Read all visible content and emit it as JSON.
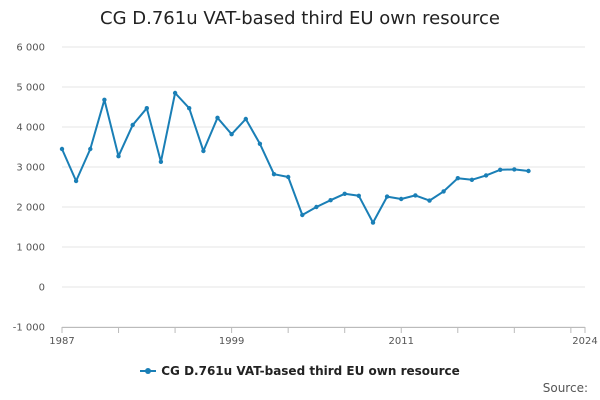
{
  "chart_data": {
    "type": "line",
    "title": "CG D.761u VAT-based third EU own resource",
    "xlabel": "",
    "ylabel": "",
    "xlim": [
      1987,
      2024
    ],
    "ylim": [
      -1000,
      6000
    ],
    "x_ticks": [
      1987,
      1999,
      2011,
      2024
    ],
    "x_tick_labels": [
      "1987",
      "1999",
      "2011",
      "2024"
    ],
    "y_ticks": [
      -1000,
      0,
      1000,
      2000,
      3000,
      4000,
      5000,
      6000
    ],
    "y_tick_labels": [
      "-1 000",
      "0",
      "1 000",
      "2 000",
      "3 000",
      "4 000",
      "5 000",
      "6 000"
    ],
    "grid": true,
    "legend_position": "bottom",
    "series": [
      {
        "name": "CG D.761u VAT-based third EU own resource",
        "color": "#1a7fb6",
        "x": [
          1987,
          1988,
          1989,
          1990,
          1991,
          1992,
          1993,
          1994,
          1995,
          1996,
          1997,
          1998,
          1999,
          2000,
          2001,
          2002,
          2003,
          2004,
          2005,
          2006,
          2007,
          2008,
          2009,
          2010,
          2011,
          2012,
          2013,
          2014,
          2015,
          2016,
          2017,
          2018,
          2019,
          2020,
          2021
        ],
        "values": [
          3450,
          2650,
          3450,
          4680,
          3270,
          4050,
          4470,
          3130,
          4850,
          4470,
          3400,
          4230,
          3820,
          4200,
          3580,
          2820,
          2750,
          1800,
          2000,
          2170,
          2330,
          2280,
          1610,
          2260,
          2200,
          2290,
          2160,
          2390,
          2720,
          2680,
          2790,
          2930,
          2940,
          2900,
          null
        ]
      }
    ],
    "source_label": "Source:"
  }
}
